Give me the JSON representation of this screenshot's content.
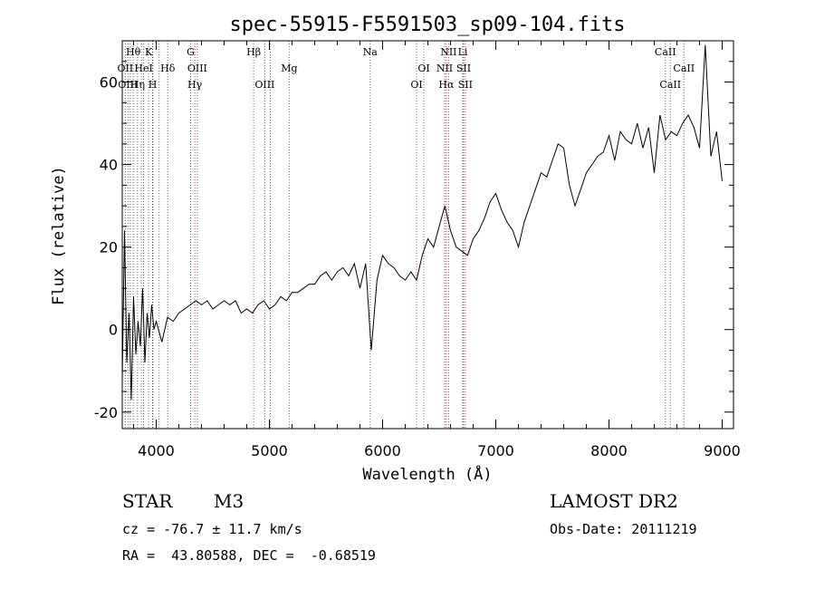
{
  "chart_data": {
    "type": "line",
    "title": "spec-55915-F5591503_sp09-104.fits",
    "xlabel": "Wavelength (Å)",
    "ylabel": "Flux (relative)",
    "xlim": [
      3700,
      9100
    ],
    "ylim": [
      -24,
      70
    ],
    "x_ticks": [
      4000,
      5000,
      6000,
      7000,
      8000,
      9000
    ],
    "y_ticks": [
      -20,
      0,
      20,
      40,
      60
    ],
    "series": [
      {
        "x": [
          3700,
          3720,
          3740,
          3760,
          3780,
          3800,
          3820,
          3840,
          3860,
          3880,
          3900,
          3920,
          3940,
          3960,
          3980,
          4000,
          4050,
          4100,
          4150,
          4200,
          4250,
          4300,
          4350,
          4400,
          4450,
          4500,
          4550,
          4600,
          4650,
          4700,
          4750,
          4800,
          4850,
          4900,
          4950,
          5000,
          5050,
          5100,
          5150,
          5200,
          5250,
          5300,
          5350,
          5400,
          5450,
          5500,
          5550,
          5600,
          5650,
          5700,
          5750,
          5800,
          5850,
          5900,
          5950,
          6000,
          6050,
          6100,
          6150,
          6200,
          6250,
          6300,
          6350,
          6400,
          6450,
          6500,
          6550,
          6600,
          6650,
          6700,
          6750,
          6800,
          6850,
          6900,
          6950,
          7000,
          7050,
          7100,
          7150,
          7200,
          7250,
          7300,
          7350,
          7400,
          7450,
          7500,
          7550,
          7600,
          7650,
          7700,
          7750,
          7800,
          7850,
          7900,
          7950,
          8000,
          8050,
          8100,
          8150,
          8200,
          8250,
          8300,
          8350,
          8400,
          8450,
          8500,
          8550,
          8600,
          8650,
          8700,
          8750,
          8800,
          8850,
          8900,
          8950,
          9000
        ],
        "y": [
          -12,
          24,
          -8,
          4,
          -17,
          8,
          -6,
          2,
          -4,
          10,
          -8,
          4,
          -2,
          6,
          0,
          2,
          -3,
          3,
          2,
          4,
          5,
          6,
          7,
          6,
          7,
          5,
          6,
          7,
          6,
          7,
          4,
          5,
          4,
          6,
          7,
          5,
          6,
          8,
          7,
          9,
          9,
          10,
          11,
          11,
          13,
          14,
          12,
          14,
          15,
          13,
          16,
          10,
          16,
          -5,
          12,
          18,
          16,
          15,
          13,
          12,
          14,
          12,
          18,
          22,
          20,
          25,
          30,
          24,
          20,
          19,
          18,
          22,
          24,
          27,
          31,
          33,
          29,
          26,
          24,
          20,
          26,
          30,
          34,
          38,
          37,
          41,
          45,
          44,
          35,
          30,
          34,
          38,
          40,
          42,
          43,
          47,
          41,
          48,
          46,
          45,
          50,
          44,
          49,
          38,
          52,
          46,
          48,
          47,
          50,
          52,
          49,
          44,
          69,
          42,
          48,
          36
        ]
      }
    ],
    "lines": {
      "red": [
        3970,
        4102,
        4341,
        4861,
        5007,
        6300,
        6563,
        6583,
        6716,
        6731
      ],
      "black": [
        3727,
        3750,
        3771,
        3797,
        3835,
        3869,
        3889,
        3933,
        3968,
        4026,
        4304,
        4363,
        4959,
        5175,
        5890,
        6364,
        6548,
        6708,
        8498,
        8542,
        8662
      ]
    },
    "line_labels": [
      {
        "text": "Hθ",
        "x": 3797,
        "row": 1
      },
      {
        "text": "K",
        "x": 3933,
        "row": 1
      },
      {
        "text": "G",
        "x": 4304,
        "row": 1
      },
      {
        "text": "Hβ",
        "x": 4861,
        "row": 1
      },
      {
        "text": "Na",
        "x": 5890,
        "row": 1
      },
      {
        "text": "NII",
        "x": 6583,
        "row": 1
      },
      {
        "text": "Li",
        "x": 6708,
        "row": 1
      },
      {
        "text": "CaII",
        "x": 8498,
        "row": 1
      },
      {
        "text": "OII",
        "x": 3727,
        "row": 2
      },
      {
        "text": "HeI",
        "x": 3889,
        "row": 2
      },
      {
        "text": "Hδ",
        "x": 4102,
        "row": 2
      },
      {
        "text": "OIII",
        "x": 4363,
        "row": 2
      },
      {
        "text": "Mg",
        "x": 5175,
        "row": 2
      },
      {
        "text": "OI",
        "x": 6364,
        "row": 2
      },
      {
        "text": "NII",
        "x": 6548,
        "row": 2
      },
      {
        "text": "SII",
        "x": 6716,
        "row": 2
      },
      {
        "text": "CaII",
        "x": 8662,
        "row": 2
      },
      {
        "text": "OIII",
        "x": 3750,
        "row": 3
      },
      {
        "text": "Hη",
        "x": 3835,
        "row": 3
      },
      {
        "text": "H",
        "x": 3968,
        "row": 3
      },
      {
        "text": "Hγ",
        "x": 4341,
        "row": 3
      },
      {
        "text": "OIII",
        "x": 4959,
        "row": 3
      },
      {
        "text": "OI",
        "x": 6300,
        "row": 3
      },
      {
        "text": "Hα",
        "x": 6563,
        "row": 3
      },
      {
        "text": "SII",
        "x": 6731,
        "row": 3
      },
      {
        "text": "CaII",
        "x": 8542,
        "row": 3
      }
    ]
  },
  "info": {
    "object_class": "STAR",
    "subclass": "M3",
    "survey": "LAMOST DR2",
    "redshift": "cz = -76.7 ± 11.7 km/s",
    "obs_date": "Obs-Date: 20111219",
    "coords": "RA =  43.80588, DEC =  -0.68519"
  },
  "colors": {
    "line_marker_red": "#d23c3c",
    "line_marker_black": "#000000",
    "spectrum": "#000000"
  }
}
